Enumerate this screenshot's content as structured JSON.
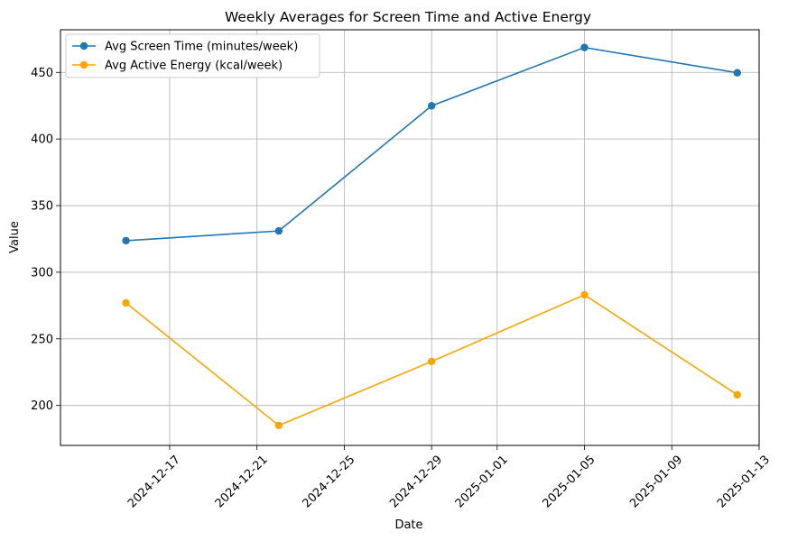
{
  "chart_data": {
    "type": "line",
    "title": "Weekly Averages for Screen Time and Active Energy",
    "xlabel": "Date",
    "ylabel": "Value",
    "xlim": [
      "2024-12-12",
      "2025-01-13"
    ],
    "ylim": [
      170,
      482
    ],
    "x_ticks": [
      "2024-12-17",
      "2024-12-21",
      "2024-12-25",
      "2024-12-29",
      "2025-01-01",
      "2025-01-05",
      "2025-01-09",
      "2025-01-13"
    ],
    "y_ticks": [
      200,
      250,
      300,
      350,
      400,
      450
    ],
    "grid": true,
    "legend": "top-left",
    "x": [
      "2024-12-15",
      "2024-12-22",
      "2024-12-29",
      "2025-01-05",
      "2025-01-12"
    ],
    "series": [
      {
        "name": "Avg Screen Time (minutes/week)",
        "color": "#1f77b4",
        "values": [
          323.7,
          331.0,
          424.9,
          468.7,
          449.7
        ]
      },
      {
        "name": "Avg Active Energy (kcal/week)",
        "color": "#ffa500",
        "values": [
          277.0,
          185.0,
          233.0,
          283.0,
          208.0
        ]
      }
    ]
  }
}
